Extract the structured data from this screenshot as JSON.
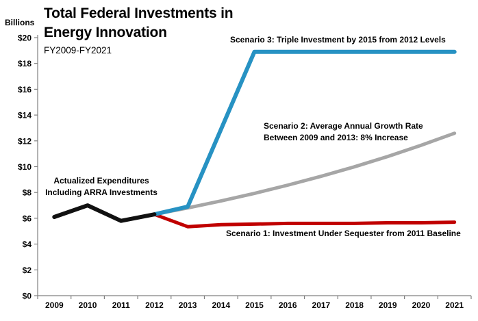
{
  "chart_data": {
    "type": "line",
    "title_line1": "Total Federal Investments in",
    "title_line2": "Energy Innovation",
    "subtitle": "FY2009-FY2021",
    "y_axis_label": "Billions",
    "ylim": [
      0,
      20
    ],
    "ytick_step": 2,
    "ytick_prefix": "$",
    "grid": false,
    "legend": "none",
    "categories": [
      "2009",
      "2010",
      "2011",
      "2012",
      "2013",
      "2014",
      "2015",
      "2016",
      "2017",
      "2018",
      "2019",
      "2020",
      "2021"
    ],
    "series": [
      {
        "key": "actual",
        "name": "Actualized Expenditures Including ARRA Investments",
        "color": "#111111",
        "start_category": "2009",
        "values": [
          6.1,
          7.0,
          5.8,
          6.3
        ],
        "z": 4
      },
      {
        "key": "scenario3",
        "name": "Scenario 3: Triple Investment by 2015 from 2012 Levels",
        "color": "#2792c3",
        "start_category": "2012",
        "values": [
          6.3,
          6.9,
          12.9,
          18.9,
          18.9,
          18.9,
          18.9,
          18.9,
          18.9,
          18.9
        ],
        "z": 3
      },
      {
        "key": "scenario2",
        "name": "Scenario 2: Average Annual Growth Rate Between 2009 and 2013: 8% Increase",
        "color": "#a6a6a6",
        "start_category": "2012",
        "values": [
          6.3,
          6.8,
          7.34,
          7.93,
          8.57,
          9.25,
          9.99,
          10.79,
          11.66,
          12.59
        ],
        "z": 1
      },
      {
        "key": "scenario1",
        "name": "Scenario 1: Investment Under Sequester from 2011 Baseline",
        "color": "#c00000",
        "start_category": "2012",
        "values": [
          6.3,
          5.35,
          5.5,
          5.55,
          5.6,
          5.6,
          5.6,
          5.65,
          5.65,
          5.7
        ],
        "z": 2
      }
    ],
    "annotations": {
      "actual_line1": "Actualized Expenditures",
      "actual_line2": "Including ARRA Investments",
      "scenario3": "Scenario 3: Triple Investment by 2015 from 2012 Levels",
      "scenario2_line1": "Scenario 2: Average Annual Growth Rate",
      "scenario2_line2": "Between 2009 and 2013: 8% Increase",
      "scenario1": "Scenario 1: Investment Under Sequester from 2011 Baseline"
    },
    "colors": {
      "axis": "#808080",
      "actual": "#111111",
      "scenario3": "#2792c3",
      "scenario2": "#a6a6a6",
      "scenario1": "#c00000"
    }
  }
}
